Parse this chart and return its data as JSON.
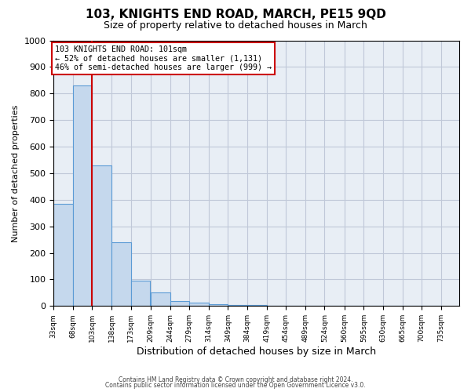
{
  "title": "103, KNIGHTS END ROAD, MARCH, PE15 9QD",
  "subtitle": "Size of property relative to detached houses in March",
  "xlabel": "Distribution of detached houses by size in March",
  "ylabel": "Number of detached properties",
  "footnote1": "Contains HM Land Registry data © Crown copyright and database right 2024.",
  "footnote2": "Contains public sector information licensed under the Open Government Licence v3.0.",
  "bin_labels": [
    "33sqm",
    "68sqm",
    "103sqm",
    "138sqm",
    "173sqm",
    "209sqm",
    "244sqm",
    "279sqm",
    "314sqm",
    "349sqm",
    "384sqm",
    "419sqm",
    "454sqm",
    "489sqm",
    "524sqm",
    "560sqm",
    "595sqm",
    "630sqm",
    "665sqm",
    "700sqm",
    "735sqm"
  ],
  "bin_starts": [
    33,
    68,
    103,
    138,
    173,
    209,
    244,
    279,
    314,
    349,
    384,
    419,
    454,
    489,
    524,
    560,
    595,
    630,
    665,
    700
  ],
  "bin_width": 35,
  "bar_heights": [
    385,
    830,
    530,
    240,
    95,
    50,
    20,
    12,
    8,
    5,
    3,
    0,
    0,
    0,
    0,
    0,
    0,
    0,
    0,
    0
  ],
  "bar_color": "#c5d8ed",
  "bar_edge_color": "#5b9bd5",
  "property_line_x": 103,
  "property_line_color": "#cc0000",
  "annotation_title": "103 KNIGHTS END ROAD: 101sqm",
  "annotation_line1": "← 52% of detached houses are smaller (1,131)",
  "annotation_line2": "46% of semi-detached houses are larger (999) →",
  "annotation_box_color": "#cc0000",
  "ylim": [
    0,
    1000
  ],
  "yticks": [
    0,
    100,
    200,
    300,
    400,
    500,
    600,
    700,
    800,
    900,
    1000
  ],
  "grid_color": "#c0c8d8",
  "bg_color": "#e8eef5",
  "fig_bg_color": "#ffffff"
}
